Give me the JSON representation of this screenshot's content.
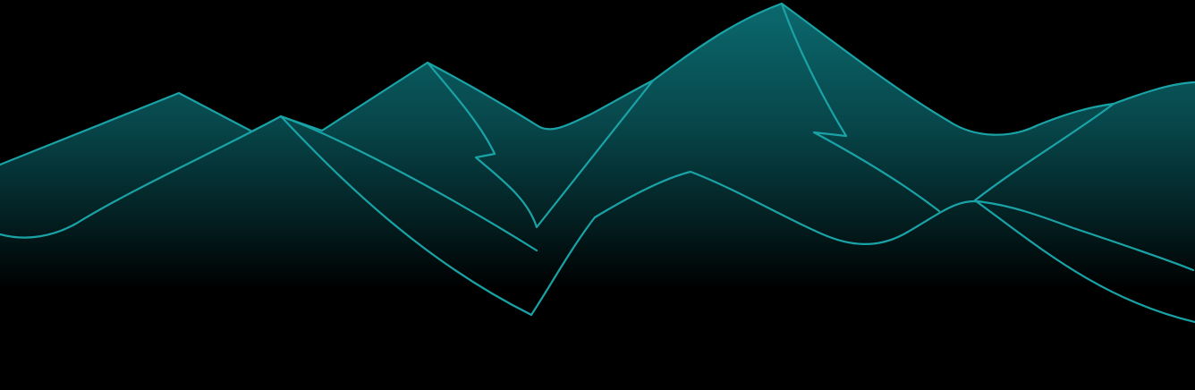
{
  "illustration": {
    "subject": "mountain-range-outline",
    "colors": {
      "background": "#000000",
      "fill_top": "#0b6a6f",
      "fill_mid": "#06363a",
      "fill_bottom": "#000000",
      "stroke": "#1aa3a6"
    }
  }
}
